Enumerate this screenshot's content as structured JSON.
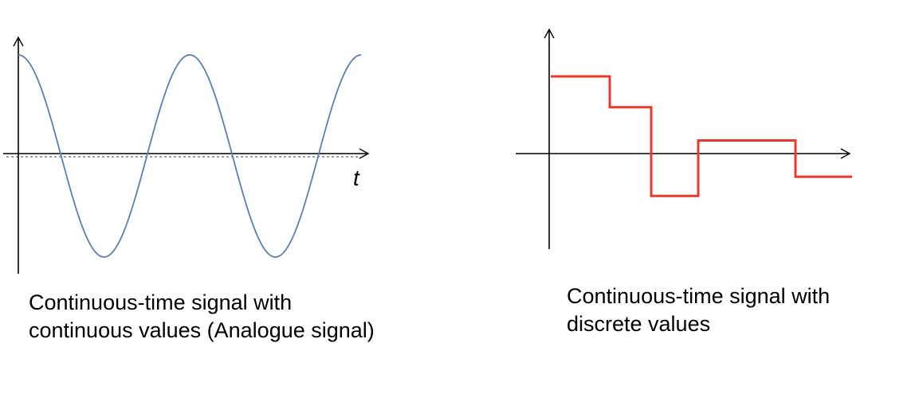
{
  "colors": {
    "axis": "#000000",
    "analogue_wave": "#5b7fb5",
    "baseline_dashes": "#9e9e9e",
    "discrete_signal": "#e8392c"
  },
  "left_panel": {
    "axis_label": "t",
    "caption_lines": [
      "Continuous-time signal with",
      "continuous values (Analogue signal)"
    ],
    "signal": {
      "kind": "cosine",
      "periods_shown": 2,
      "relative_amplitude": 1.0
    }
  },
  "right_panel": {
    "caption_lines": [
      "Continuous-time signal with",
      "discrete values"
    ],
    "signal": {
      "kind": "step",
      "levels": [
        1,
        0.6,
        -0.55,
        0.17,
        -0.3
      ]
    }
  }
}
